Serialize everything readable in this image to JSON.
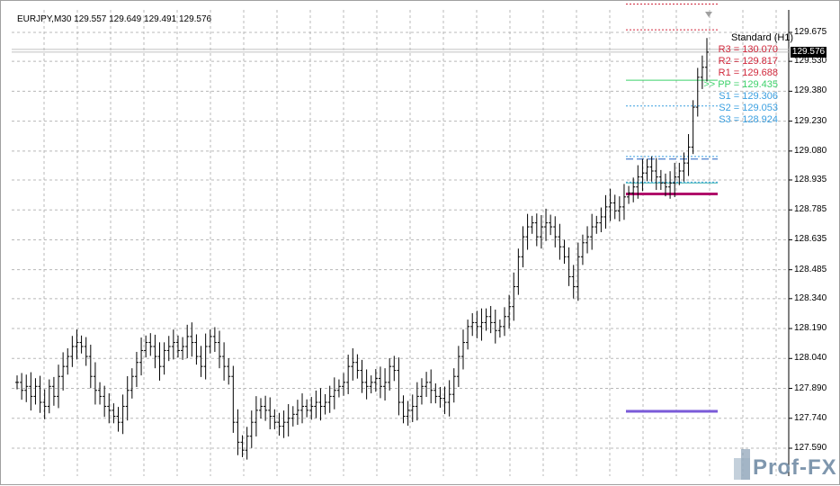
{
  "header": {
    "symbol_line": "EURJPY,M30 129.557 129.649 129.491 129.576"
  },
  "price_badge": "129.576",
  "pivot_panel": {
    "title": "Standard (H1)",
    "levels": [
      {
        "label": "R3 = 130.070",
        "value": 130.07,
        "color": "#d0283c"
      },
      {
        "label": "R2 = 129.817",
        "value": 129.817,
        "color": "#d0283c"
      },
      {
        "label": "R1 = 129.688",
        "value": 129.688,
        "color": "#d0283c"
      },
      {
        "label": ">> PP = 129.435",
        "value": 129.435,
        "color": "#3cd26a"
      },
      {
        "label": "S1 = 129.306",
        "value": 129.306,
        "color": "#3a9fe0"
      },
      {
        "label": "S2 = 129.053",
        "value": 129.053,
        "color": "#3a9fe0"
      },
      {
        "label": "S3 = 128.924",
        "value": 128.924,
        "color": "#3a9fe0"
      }
    ]
  },
  "watermark": "Prof-FX",
  "chart_data": {
    "type": "bar",
    "title": "",
    "yaxis_ticks": [
      "129.675",
      "129.530",
      "129.380",
      "129.230",
      "129.080",
      "128.935",
      "128.785",
      "128.635",
      "128.485",
      "128.340",
      "128.190",
      "128.040",
      "127.890",
      "127.740",
      "127.590"
    ],
    "ylim": [
      127.51,
      129.73
    ],
    "grid": true,
    "bar_style": "OHLC",
    "current_price": 129.576,
    "closes": [
      127.92,
      127.88,
      127.9,
      127.85,
      127.9,
      127.82,
      127.8,
      127.9,
      127.85,
      127.95,
      128.0,
      128.05,
      128.1,
      128.12,
      128.1,
      128.05,
      127.95,
      127.88,
      127.85,
      127.8,
      127.78,
      127.75,
      127.72,
      127.8,
      127.88,
      127.95,
      128.02,
      128.08,
      128.12,
      128.1,
      128.05,
      128.0,
      128.08,
      128.1,
      128.12,
      128.08,
      128.1,
      128.15,
      128.12,
      128.05,
      128.0,
      128.1,
      128.15,
      128.12,
      128.05,
      128.0,
      127.95,
      127.72,
      127.62,
      127.58,
      127.65,
      127.72,
      127.78,
      127.8,
      127.78,
      127.75,
      127.72,
      127.7,
      127.72,
      127.74,
      127.76,
      127.78,
      127.8,
      127.78,
      127.8,
      127.82,
      127.8,
      127.82,
      127.85,
      127.88,
      127.9,
      127.92,
      128.0,
      128.02,
      127.98,
      127.92,
      127.9,
      127.92,
      127.94,
      127.9,
      127.92,
      128.0,
      127.98,
      127.82,
      127.75,
      127.78,
      127.8,
      127.85,
      127.9,
      127.92,
      127.88,
      127.85,
      127.84,
      127.82,
      127.86,
      127.95,
      128.05,
      128.12,
      128.2,
      128.22,
      128.2,
      128.22,
      128.25,
      128.22,
      128.18,
      128.2,
      128.25,
      128.3,
      128.4,
      128.55,
      128.65,
      128.7,
      128.72,
      128.65,
      128.7,
      128.72,
      128.7,
      128.65,
      128.6,
      128.55,
      128.45,
      128.4,
      128.55,
      128.62,
      128.65,
      128.7,
      128.72,
      128.75,
      128.8,
      128.82,
      128.78,
      128.8,
      128.85,
      128.87,
      128.9,
      128.95,
      128.97,
      129.0,
      128.98,
      128.95,
      128.92,
      128.9,
      128.92,
      128.95,
      128.98,
      129.02,
      129.1,
      129.3,
      129.45,
      129.5,
      129.576
    ],
    "xlabel": "",
    "ylabel": ""
  }
}
